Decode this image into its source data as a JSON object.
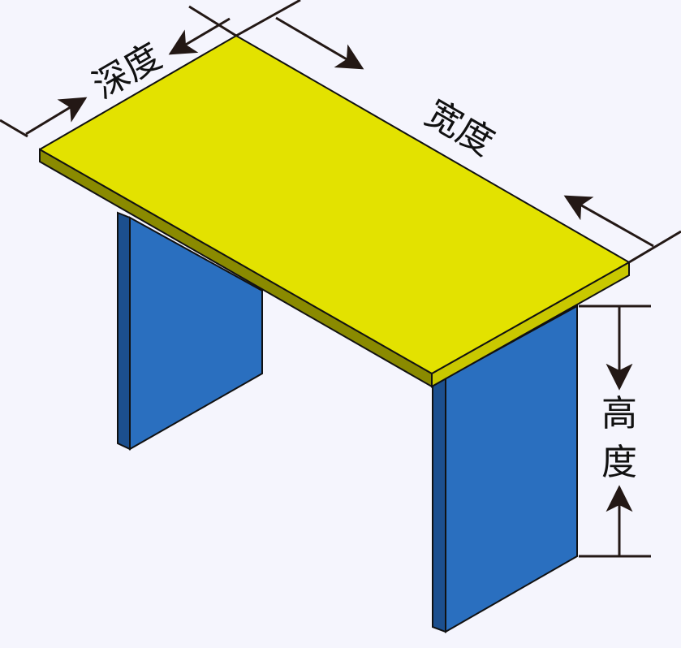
{
  "labels": {
    "depth": "深度",
    "width": "宽度",
    "height_char1": "高",
    "height_char2": "度"
  },
  "colors": {
    "background": "#f5f5fd",
    "tabletop": "#e3e200",
    "tabletop_edge": "#8a8a00",
    "tabletop_edge_right": "#c9c800",
    "leg_face": "#2a6fbf",
    "leg_side": "#1c4f8e",
    "stroke": "#111111",
    "dimension": "#231815"
  }
}
